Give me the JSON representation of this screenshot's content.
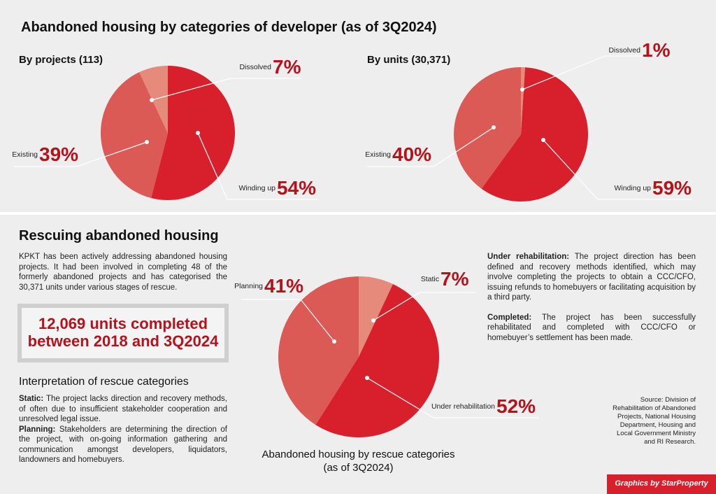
{
  "title": "Abandoned housing by categories of developer (as of 3Q2024)",
  "chart_data": [
    {
      "type": "pie",
      "title": "By projects (113)",
      "categories": [
        "Winding up",
        "Existing",
        "Dissolved"
      ],
      "values": [
        54,
        39,
        7
      ],
      "value_labels": [
        "54%",
        "39%",
        "7%"
      ],
      "colors": [
        "#d7202b",
        "#dc5a55",
        "#e68a7c"
      ]
    },
    {
      "type": "pie",
      "title": "By units (30,371)",
      "categories": [
        "Dissolved",
        "Winding up",
        "Existing"
      ],
      "values": [
        1,
        59,
        40
      ],
      "value_labels": [
        "1%",
        "59%",
        "40%"
      ],
      "colors": [
        "#e68a7c",
        "#d7202b",
        "#dc5a55"
      ]
    },
    {
      "type": "pie",
      "title": "Abandoned housing by rescue categories (as of 3Q2024)",
      "categories": [
        "Static",
        "Under rehabilitation",
        "Planning"
      ],
      "values": [
        7,
        52,
        41
      ],
      "value_labels": [
        "7%",
        "52%",
        "41%"
      ],
      "colors": [
        "#e68a7c",
        "#d7202b",
        "#dc5a55"
      ]
    }
  ],
  "rescue": {
    "title": "Rescuing abandoned housing",
    "intro": "KPKT has been actively addressing abandoned housing projects. It had been involved in completing 48 of the formerly abandoned projects and has categorised the 30,371 units under various stages of rescue.",
    "highlight": "12,069 units completed between 2018 and 3Q2024",
    "interpretation_title": "Interpretation of rescue categories",
    "definitions": [
      {
        "term": "Static:",
        "text": "The project lacks direction and recovery methods, of often due to insufficient stakeholder cooperation and unresolved legal issue."
      },
      {
        "term": "Planning:",
        "text": "Stakeholders are determining the direction of the project, with on-going information gathering and communication amongst developers, liquidators, landowners and homebuyers."
      },
      {
        "term": "Under rehabilitation:",
        "text": "The project direction has been defined and recovery methods identified, which may involve completing the projects to obtain a CCC/CFO, issuing refunds to homebuyers or facilitating acquisition by a third party."
      },
      {
        "term": "Completed:",
        "text": "The project has been successfully rehabilitated and completed with CCC/CFO or homebuyer’s settlement has been made."
      }
    ],
    "source": "Source: Division of Rehabilitation of Abandoned Projects, National Housing Department, Housing and Local Government Ministry and RI Research.",
    "credit": "Graphics by StarProperty"
  }
}
